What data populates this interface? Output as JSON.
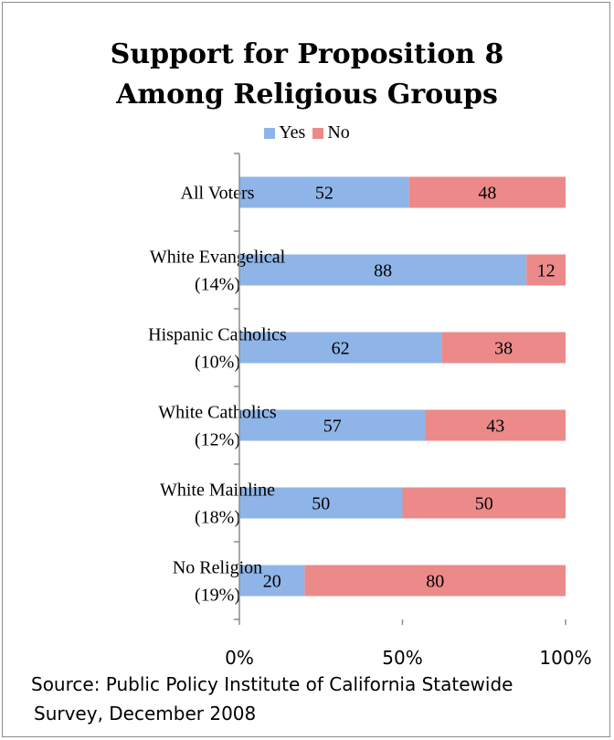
{
  "chart_data": {
    "type": "bar",
    "orientation": "horizontal",
    "stacked": true,
    "title_lines": [
      "Support for Proposition 8",
      "Among Religious Groups"
    ],
    "categories": [
      [
        "All Voters"
      ],
      [
        "White Evangelical",
        "(14%)"
      ],
      [
        "Hispanic Catholics",
        "(10%)"
      ],
      [
        "White Catholics",
        "(12%)"
      ],
      [
        "White Mainline",
        "(18%)"
      ],
      [
        "No Religion",
        "(19%)"
      ]
    ],
    "series": [
      {
        "name": "Yes",
        "color": "#8fb5e8",
        "values": [
          52,
          88,
          62,
          57,
          50,
          20
        ]
      },
      {
        "name": "No",
        "color": "#ec8a8a",
        "values": [
          48,
          12,
          38,
          43,
          50,
          80
        ]
      }
    ],
    "xlim": [
      0,
      100
    ],
    "x_ticks": [
      "0%",
      "50%",
      "100%"
    ],
    "legend_position": "top",
    "grid": false
  },
  "source_lines": [
    "Source: Public Policy Institute of California Statewide",
    "Survey, December 2008"
  ]
}
